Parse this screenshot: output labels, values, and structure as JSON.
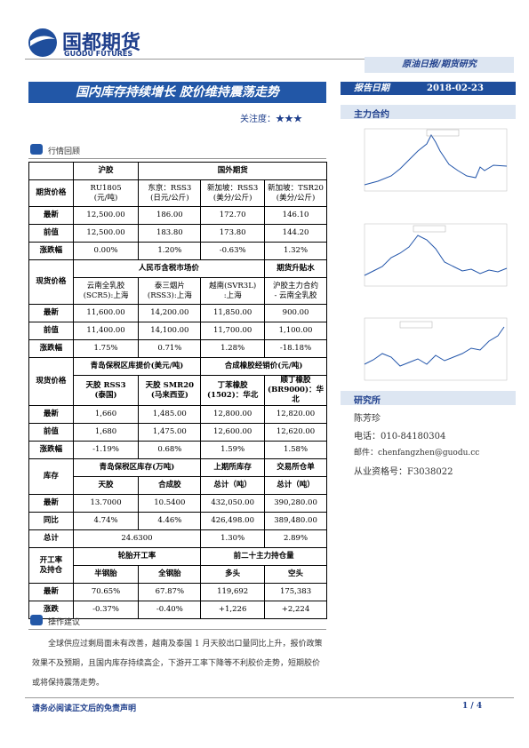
{
  "header": {
    "logo_cn": "国都期货",
    "logo_en": "GUODU FUTURES",
    "category": "原油日报/期货研究",
    "date_label": "报告日期",
    "date": "2018-02-23"
  },
  "title": "国内库存持续增长 胶价维持震荡走势",
  "attention": "关注度：★★★",
  "section1": "行情回顾",
  "table": {
    "rows": [
      [
        "沪胶",
        "国外期货"
      ],
      [
        "期货价格",
        "RU1805\n(元/吨)",
        "东京：RSS3\n(日元/公斤)",
        "新加坡：RSS3\n(美分/公斤)",
        "新加坡：TSR20\n(美分/公斤)"
      ],
      [
        "最新",
        "12,500.00",
        "186.00",
        "172.70",
        "146.10"
      ],
      [
        "前值",
        "12,500.00",
        "183.80",
        "173.80",
        "144.20"
      ],
      [
        "涨跌幅",
        "0.00%",
        "1.20%",
        "-0.63%",
        "1.32%"
      ],
      [
        "现货价格",
        "人民币含税市场价",
        "期货升贴水"
      ],
      [
        "云南全乳胶\n(SCR5):上海",
        "泰三烟片\n(RSS3):上海",
        "越南(SVR3L)\n:上海",
        "沪胶主力合约\n- 云南全乳胶"
      ],
      [
        "最新",
        "11,600.00",
        "14,200.00",
        "11,850.00",
        "900.00"
      ],
      [
        "前值",
        "11,400.00",
        "14,100.00",
        "11,700.00",
        "1,100.00"
      ],
      [
        "涨跌幅",
        "1.75%",
        "0.71%",
        "1.28%",
        "-18.18%"
      ],
      [
        "现货价格",
        "青岛保税区库提价(美元/吨)",
        "合成橡胶经销价(元/吨)"
      ],
      [
        "天胶 RSS3\n(泰国)",
        "天胶 SMR20\n(马来西亚)",
        "丁苯橡胶\n(1502)：华北",
        "顺丁橡胶\n(BR9000)：华北"
      ],
      [
        "最新",
        "1,660",
        "1,485.00",
        "12,800.00",
        "12,820.00"
      ],
      [
        "前值",
        "1,680",
        "1,475.00",
        "12,600.00",
        "12,620.00"
      ],
      [
        "涨跌幅",
        "-1.19%",
        "0.68%",
        "1.59%",
        "1.58%"
      ],
      [
        "库存",
        "青岛保税区库存(万吨)",
        "上期所库存",
        "交易所仓单"
      ],
      [
        "天胶",
        "合成胶",
        "总计（吨）",
        "总计（吨）"
      ],
      [
        "最新",
        "13.7000",
        "10.5400",
        "432,050.00",
        "390,280.00"
      ],
      [
        "同比",
        "4.74%",
        "4.46%",
        "426,498.00",
        "389,480.00"
      ],
      [
        "总计",
        "24.6300",
        "1.30%",
        "2.89%"
      ],
      [
        "开工率\n及持仓",
        "轮胎开工率",
        "前二十主力持仓量"
      ],
      [
        "半钢胎",
        "全钢胎",
        "多头",
        "空头"
      ],
      [
        "最新",
        "70.65%",
        "67.87%",
        "119,692",
        "175,383"
      ],
      [
        "涨跌",
        "-0.37%",
        "-0.40%",
        "+1,226",
        "+2,224"
      ]
    ]
  },
  "section2": "操作建议",
  "paragraph": "全球供应过剩局面未有改善，越南及泰国 1 月天胶出口量同比上升，报价政策效果不及预期，且国内库存持续高企，下游开工率下降等不利胶价走势，短期胶价或将保持震荡走势。",
  "sidebar": {
    "contract": "主力合约",
    "institute": "研究所",
    "name": "陈芳珍",
    "phone": "电话：010-84180304",
    "email": "邮件：chenfangzhen@guodu.cc",
    "license": "从业资格号：F3038022"
  },
  "footer": {
    "disclaimer": "请务必阅读正文后的免责声明",
    "page": "1 / 4"
  }
}
